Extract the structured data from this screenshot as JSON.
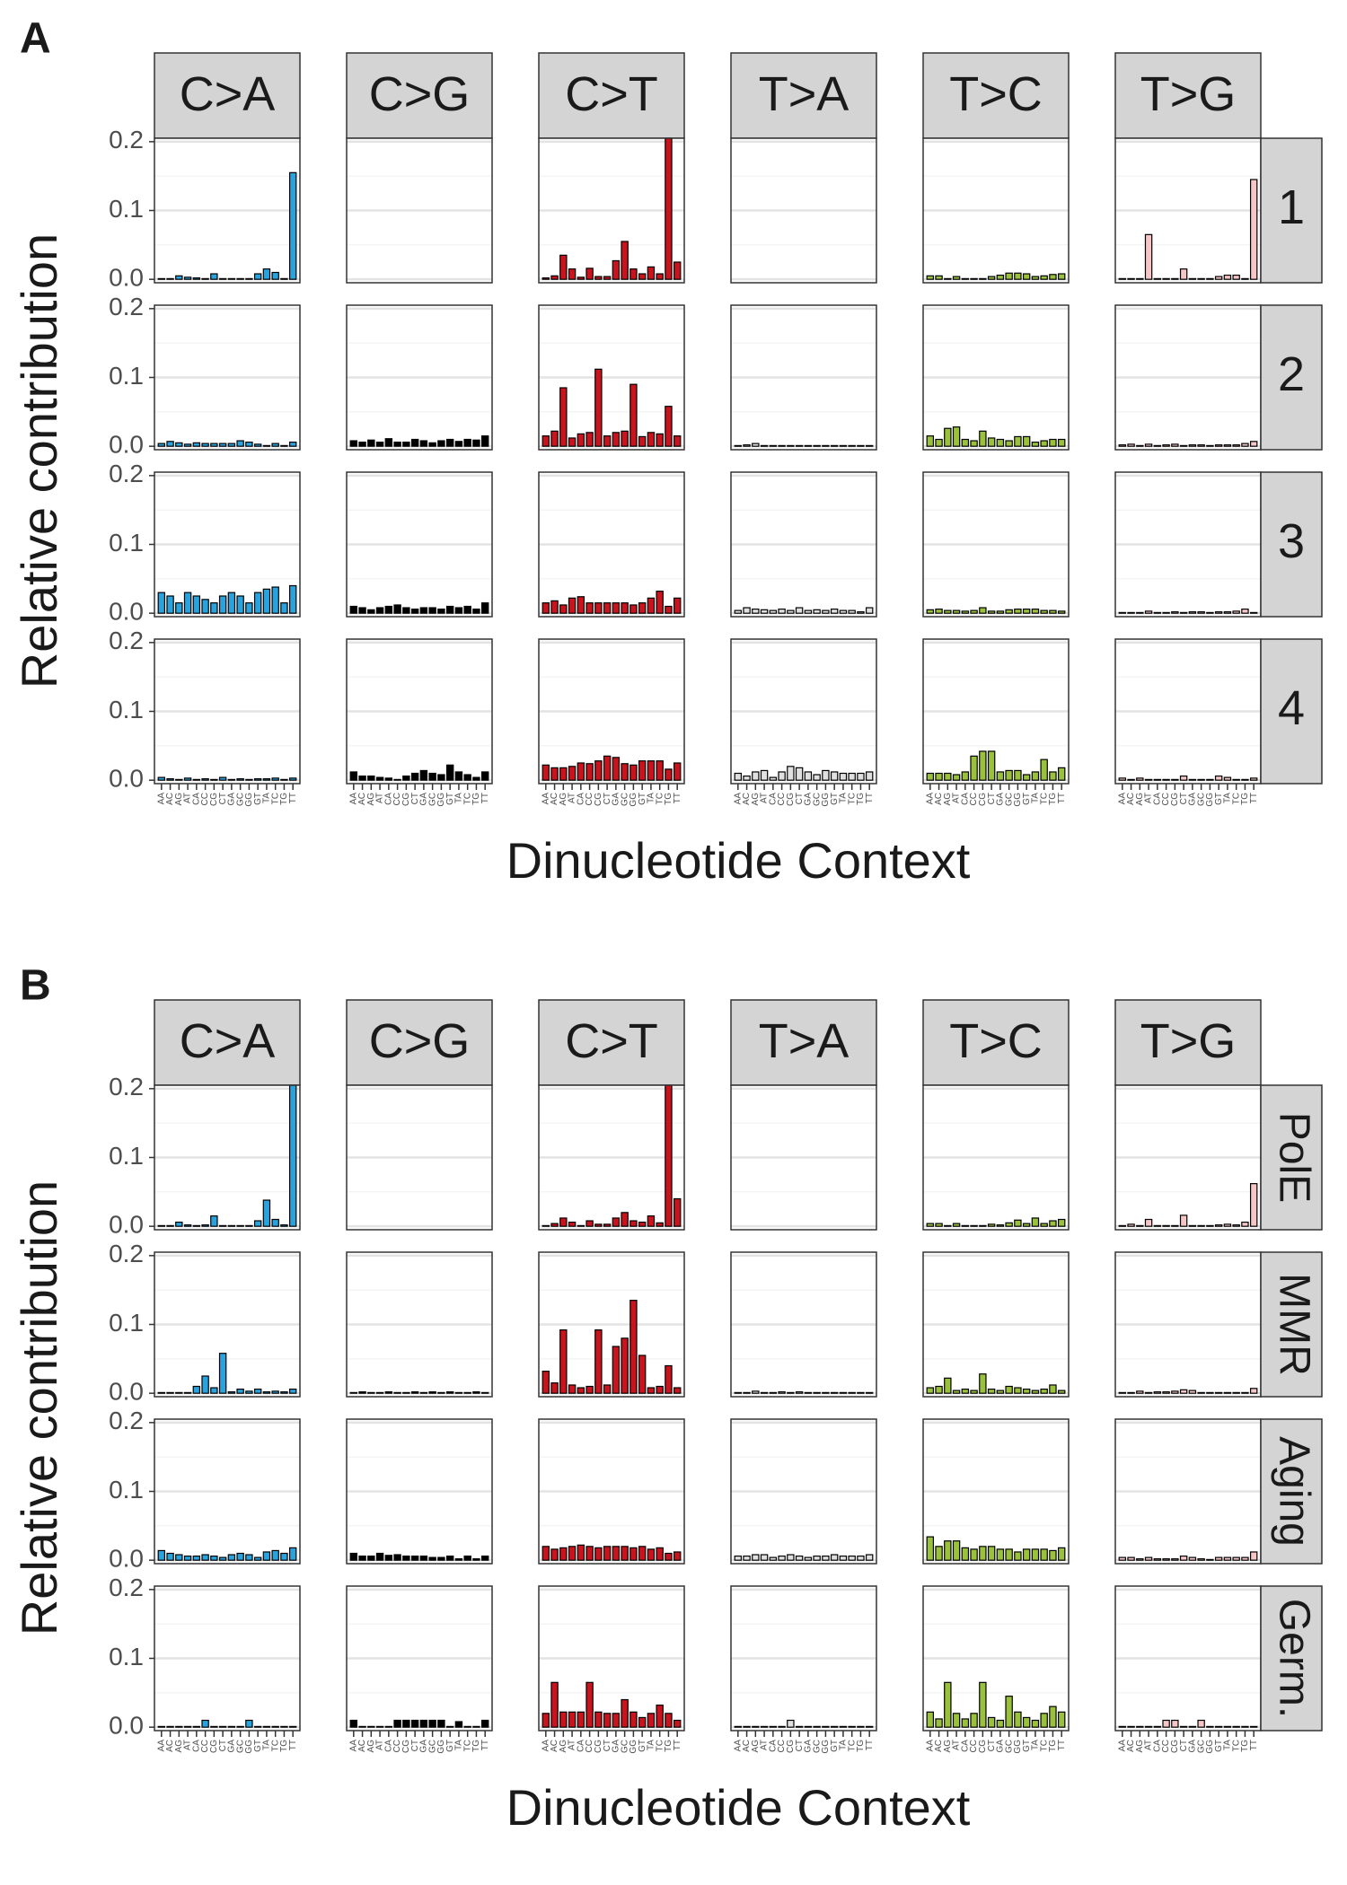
{
  "chart_data": [
    {
      "type": "bar",
      "panel_label": "A",
      "xlabel": "Dinucleotide Context",
      "ylabel": "Relative contribution",
      "categories": [
        "AA",
        "AC",
        "AG",
        "AT",
        "CA",
        "CC",
        "CG",
        "CT",
        "GA",
        "GC",
        "GG",
        "GT",
        "TA",
        "TC",
        "TG",
        "TT"
      ],
      "facet_rows": [
        "1",
        "2",
        "3",
        "4"
      ],
      "ylim": [
        -0.005,
        0.205
      ],
      "yticks": [
        {
          "value": 0,
          "label": "0.0"
        },
        0.1,
        0.2
      ],
      "minor_yticks": [
        0.05,
        0.15
      ],
      "grid": true,
      "series": [
        {
          "name": "C>A",
          "color": "#29a3dd",
          "values": [
            [
              0.001,
              0.001,
              0.005,
              0.003,
              0.002,
              0.001,
              0.008,
              0.001,
              0.001,
              0.001,
              0.001,
              0.008,
              0.015,
              0.01,
              0.001,
              0.155
            ],
            [
              0.004,
              0.007,
              0.005,
              0.003,
              0.005,
              0.004,
              0.004,
              0.004,
              0.004,
              0.008,
              0.006,
              0.003,
              0.001,
              0.004,
              0.001,
              0.006
            ],
            [
              0.03,
              0.025,
              0.015,
              0.03,
              0.025,
              0.02,
              0.015,
              0.025,
              0.03,
              0.025,
              0.015,
              0.03,
              0.035,
              0.038,
              0.015,
              0.04
            ],
            [
              0.004,
              0.002,
              0.001,
              0.003,
              0.001,
              0.002,
              0.001,
              0.004,
              0.001,
              0.002,
              0.001,
              0.002,
              0.002,
              0.003,
              0.001,
              0.003
            ]
          ]
        },
        {
          "name": "C>G",
          "color": "#000000",
          "values": [
            [
              0,
              0,
              0,
              0,
              0,
              0,
              0,
              0,
              0,
              0,
              0,
              0,
              0,
              0,
              0,
              0
            ],
            [
              0.008,
              0.006,
              0.009,
              0.006,
              0.011,
              0.006,
              0.006,
              0.01,
              0.008,
              0.005,
              0.008,
              0.01,
              0.007,
              0.01,
              0.009,
              0.015
            ],
            [
              0.01,
              0.008,
              0.005,
              0.008,
              0.01,
              0.012,
              0.008,
              0.006,
              0.008,
              0.008,
              0.006,
              0.01,
              0.008,
              0.01,
              0.006,
              0.015
            ],
            [
              0.012,
              0.006,
              0.006,
              0.004,
              0.003,
              0.001,
              0.006,
              0.01,
              0.014,
              0.01,
              0.008,
              0.022,
              0.012,
              0.008,
              0.004,
              0.012
            ]
          ]
        },
        {
          "name": "C>T",
          "color": "#c9141e",
          "values": [
            [
              0.002,
              0.005,
              0.035,
              0.015,
              0.003,
              0.016,
              0.004,
              0.004,
              0.027,
              0.055,
              0.015,
              0.008,
              0.018,
              0.008,
              0.205,
              0.025
            ],
            [
              0.015,
              0.022,
              0.085,
              0.012,
              0.018,
              0.02,
              0.112,
              0.015,
              0.02,
              0.022,
              0.09,
              0.014,
              0.02,
              0.018,
              0.058,
              0.015
            ],
            [
              0.015,
              0.018,
              0.012,
              0.022,
              0.024,
              0.015,
              0.015,
              0.015,
              0.015,
              0.015,
              0.012,
              0.015,
              0.022,
              0.032,
              0.01,
              0.022
            ],
            [
              0.022,
              0.018,
              0.018,
              0.02,
              0.025,
              0.024,
              0.028,
              0.035,
              0.033,
              0.024,
              0.022,
              0.028,
              0.028,
              0.028,
              0.016,
              0.025
            ]
          ]
        },
        {
          "name": "T>A",
          "color": "#e0e0e0",
          "values": [
            [
              0,
              0,
              0,
              0,
              0,
              0,
              0,
              0,
              0,
              0,
              0,
              0,
              0,
              0,
              0,
              0
            ],
            [
              0.001,
              0.002,
              0.004,
              0.001,
              0.001,
              0.001,
              0.001,
              0.001,
              0.001,
              0.001,
              0.001,
              0.001,
              0.001,
              0.001,
              0.001,
              0.001
            ],
            [
              0.004,
              0.008,
              0.006,
              0.005,
              0.004,
              0.006,
              0.004,
              0.008,
              0.004,
              0.005,
              0.004,
              0.006,
              0.004,
              0.004,
              0.002,
              0.008
            ],
            [
              0.01,
              0.006,
              0.012,
              0.014,
              0.004,
              0.012,
              0.02,
              0.018,
              0.012,
              0.008,
              0.014,
              0.012,
              0.01,
              0.01,
              0.01,
              0.012
            ]
          ]
        },
        {
          "name": "T>C",
          "color": "#99c13c",
          "values": [
            [
              0.005,
              0.005,
              0.001,
              0.004,
              0.001,
              0.001,
              0.001,
              0.004,
              0.006,
              0.009,
              0.009,
              0.008,
              0.004,
              0.005,
              0.007,
              0.008
            ],
            [
              0.015,
              0.01,
              0.026,
              0.028,
              0.01,
              0.008,
              0.022,
              0.012,
              0.01,
              0.008,
              0.014,
              0.014,
              0.006,
              0.008,
              0.01,
              0.01
            ],
            [
              0.005,
              0.006,
              0.004,
              0.004,
              0.003,
              0.004,
              0.008,
              0.003,
              0.003,
              0.005,
              0.006,
              0.006,
              0.006,
              0.004,
              0.004,
              0.003
            ],
            [
              0.01,
              0.01,
              0.01,
              0.008,
              0.012,
              0.035,
              0.042,
              0.042,
              0.012,
              0.014,
              0.014,
              0.008,
              0.012,
              0.03,
              0.012,
              0.018
            ]
          ]
        },
        {
          "name": "T>G",
          "color": "#f6c5c5",
          "values": [
            [
              0.001,
              0.001,
              0.001,
              0.065,
              0.001,
              0.001,
              0.001,
              0.015,
              0.001,
              0.001,
              0.001,
              0.004,
              0.006,
              0.006,
              0.001,
              0.145
            ],
            [
              0.002,
              0.003,
              0.001,
              0.003,
              0.001,
              0.002,
              0.003,
              0.001,
              0.002,
              0.002,
              0.001,
              0.002,
              0.002,
              0.002,
              0.004,
              0.007
            ],
            [
              0.001,
              0.001,
              0.001,
              0.003,
              0.001,
              0.001,
              0.002,
              0.001,
              0.002,
              0.002,
              0.001,
              0.002,
              0.002,
              0.003,
              0.006,
              0.001
            ],
            [
              0.003,
              0.001,
              0.003,
              0.001,
              0.001,
              0.001,
              0.001,
              0.006,
              0.001,
              0.001,
              0.001,
              0.006,
              0.004,
              0.001,
              0.001,
              0.003
            ]
          ]
        }
      ]
    },
    {
      "type": "bar",
      "panel_label": "B",
      "xlabel": "Dinucleotide Context",
      "ylabel": "Relative contribution",
      "categories": [
        "AA",
        "AC",
        "AG",
        "AT",
        "CA",
        "CC",
        "CG",
        "CT",
        "GA",
        "GC",
        "GG",
        "GT",
        "TA",
        "TC",
        "TG",
        "TT"
      ],
      "facet_rows": [
        "PolE",
        "MMR",
        "Aging",
        "Germ."
      ],
      "ylim": [
        -0.005,
        0.205
      ],
      "yticks": [
        {
          "value": 0,
          "label": "0.0"
        },
        0.1,
        0.2
      ],
      "minor_yticks": [
        0.05,
        0.15
      ],
      "grid": true,
      "series": [
        {
          "name": "C>A",
          "color": "#29a3dd",
          "values": [
            [
              0.001,
              0.001,
              0.006,
              0.002,
              0.001,
              0.002,
              0.015,
              0.001,
              0.001,
              0.001,
              0.001,
              0.008,
              0.038,
              0.01,
              0.002,
              0.205
            ],
            [
              0.001,
              0.001,
              0.001,
              0.001,
              0.01,
              0.025,
              0.008,
              0.058,
              0.002,
              0.006,
              0.003,
              0.006,
              0.002,
              0.003,
              0.002,
              0.006
            ],
            [
              0.014,
              0.01,
              0.008,
              0.006,
              0.006,
              0.008,
              0.006,
              0.004,
              0.008,
              0.01,
              0.008,
              0.004,
              0.012,
              0.014,
              0.01,
              0.018
            ],
            [
              0.001,
              0.001,
              0.001,
              0.001,
              0.001,
              0.01,
              0.001,
              0.001,
              0.001,
              0.001,
              0.01,
              0.001,
              0.001,
              0.001,
              0.001,
              0.001
            ]
          ]
        },
        {
          "name": "C>G",
          "color": "#000000",
          "values": [
            [
              0,
              0,
              0,
              0,
              0,
              0,
              0,
              0,
              0,
              0,
              0,
              0,
              0,
              0,
              0,
              0
            ],
            [
              0.001,
              0.002,
              0.001,
              0.001,
              0.002,
              0.001,
              0.001,
              0.002,
              0.001,
              0.002,
              0.001,
              0.002,
              0.001,
              0.001,
              0.002,
              0.001
            ],
            [
              0.01,
              0.006,
              0.006,
              0.01,
              0.007,
              0.008,
              0.006,
              0.006,
              0.006,
              0.004,
              0.004,
              0.006,
              0.002,
              0.006,
              0.002,
              0.006
            ],
            [
              0.01,
              0.001,
              0.001,
              0.001,
              0.001,
              0.01,
              0.01,
              0.01,
              0.01,
              0.01,
              0.01,
              0.001,
              0.008,
              0.001,
              0.001,
              0.01
            ]
          ]
        },
        {
          "name": "C>T",
          "color": "#c9141e",
          "values": [
            [
              0.001,
              0.004,
              0.012,
              0.006,
              0.001,
              0.008,
              0.003,
              0.003,
              0.012,
              0.02,
              0.008,
              0.006,
              0.015,
              0.005,
              0.205,
              0.04
            ],
            [
              0.032,
              0.015,
              0.092,
              0.012,
              0.008,
              0.01,
              0.092,
              0.012,
              0.068,
              0.08,
              0.135,
              0.055,
              0.008,
              0.01,
              0.04,
              0.008
            ],
            [
              0.02,
              0.016,
              0.018,
              0.02,
              0.022,
              0.02,
              0.018,
              0.02,
              0.02,
              0.02,
              0.018,
              0.02,
              0.016,
              0.018,
              0.01,
              0.012
            ],
            [
              0.02,
              0.065,
              0.022,
              0.022,
              0.022,
              0.065,
              0.022,
              0.02,
              0.02,
              0.04,
              0.022,
              0.014,
              0.02,
              0.032,
              0.02,
              0.01
            ]
          ]
        },
        {
          "name": "T>A",
          "color": "#e0e0e0",
          "values": [
            [
              0,
              0,
              0,
              0,
              0,
              0,
              0,
              0,
              0,
              0,
              0,
              0,
              0,
              0,
              0,
              0
            ],
            [
              0.001,
              0.001,
              0.003,
              0.001,
              0.001,
              0.002,
              0.001,
              0.002,
              0.001,
              0.001,
              0.001,
              0.001,
              0.001,
              0.001,
              0.001,
              0.001
            ],
            [
              0.006,
              0.006,
              0.008,
              0.008,
              0.004,
              0.006,
              0.008,
              0.006,
              0.004,
              0.006,
              0.006,
              0.008,
              0.006,
              0.006,
              0.006,
              0.008
            ],
            [
              0.001,
              0.001,
              0.001,
              0.001,
              0.001,
              0.001,
              0.01,
              0.001,
              0.001,
              0.001,
              0.001,
              0.001,
              0.001,
              0.001,
              0.001,
              0.001
            ]
          ]
        },
        {
          "name": "T>C",
          "color": "#99c13c",
          "values": [
            [
              0.004,
              0.004,
              0.001,
              0.004,
              0.001,
              0.001,
              0.001,
              0.003,
              0.002,
              0.005,
              0.009,
              0.004,
              0.012,
              0.004,
              0.008,
              0.01
            ],
            [
              0.008,
              0.01,
              0.022,
              0.004,
              0.006,
              0.004,
              0.028,
              0.006,
              0.004,
              0.01,
              0.008,
              0.006,
              0.004,
              0.006,
              0.012,
              0.004
            ],
            [
              0.034,
              0.02,
              0.028,
              0.028,
              0.018,
              0.016,
              0.02,
              0.02,
              0.016,
              0.016,
              0.012,
              0.016,
              0.016,
              0.016,
              0.014,
              0.018
            ],
            [
              0.022,
              0.012,
              0.065,
              0.02,
              0.012,
              0.02,
              0.065,
              0.014,
              0.01,
              0.045,
              0.022,
              0.014,
              0.01,
              0.02,
              0.03,
              0.022
            ]
          ]
        },
        {
          "name": "T>G",
          "color": "#f6c5c5",
          "values": [
            [
              0.001,
              0.003,
              0.001,
              0.01,
              0.001,
              0.001,
              0.001,
              0.016,
              0.001,
              0.001,
              0.001,
              0.002,
              0.003,
              0.002,
              0.006,
              0.062
            ],
            [
              0.001,
              0.001,
              0.003,
              0.001,
              0.002,
              0.002,
              0.003,
              0.005,
              0.004,
              0.001,
              0.001,
              0.001,
              0.001,
              0.001,
              0.001,
              0.007
            ],
            [
              0.004,
              0.004,
              0.002,
              0.004,
              0.002,
              0.002,
              0.002,
              0.006,
              0.004,
              0.002,
              0.001,
              0.004,
              0.004,
              0.004,
              0.004,
              0.012
            ],
            [
              0.001,
              0.001,
              0.001,
              0.001,
              0.001,
              0.01,
              0.01,
              0.001,
              0.001,
              0.01,
              0.001,
              0.001,
              0.001,
              0.001,
              0.001,
              0.001
            ]
          ]
        }
      ]
    }
  ]
}
